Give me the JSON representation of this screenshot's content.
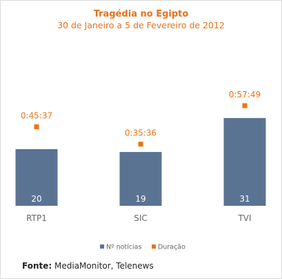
{
  "chart_data": {
    "type": "bar",
    "title": "Tragédia no Egipto",
    "subtitle": "30 de Janeiro a 5 de Fevereiro de 2012",
    "categories": [
      "RTP1",
      "SIC",
      "TVI"
    ],
    "series": [
      {
        "name": "Nº notícias",
        "type": "bar",
        "values": [
          20,
          19,
          31
        ],
        "labels": [
          "20",
          "19",
          "31"
        ]
      },
      {
        "name": "Duração",
        "type": "scatter",
        "values": [
          "0:45:37",
          "0:35:36",
          "0:57:49"
        ],
        "labels": [
          "0:45:37",
          "0:35:36",
          "0:57:49"
        ]
      }
    ],
    "legend": "bottom",
    "grid": false
  },
  "colors": {
    "bar": "#5b7393",
    "marker": "#f07215",
    "title": "#e8711c"
  },
  "source": {
    "label": "Fonte:",
    "text": "MediaMonitor, Telenews"
  }
}
